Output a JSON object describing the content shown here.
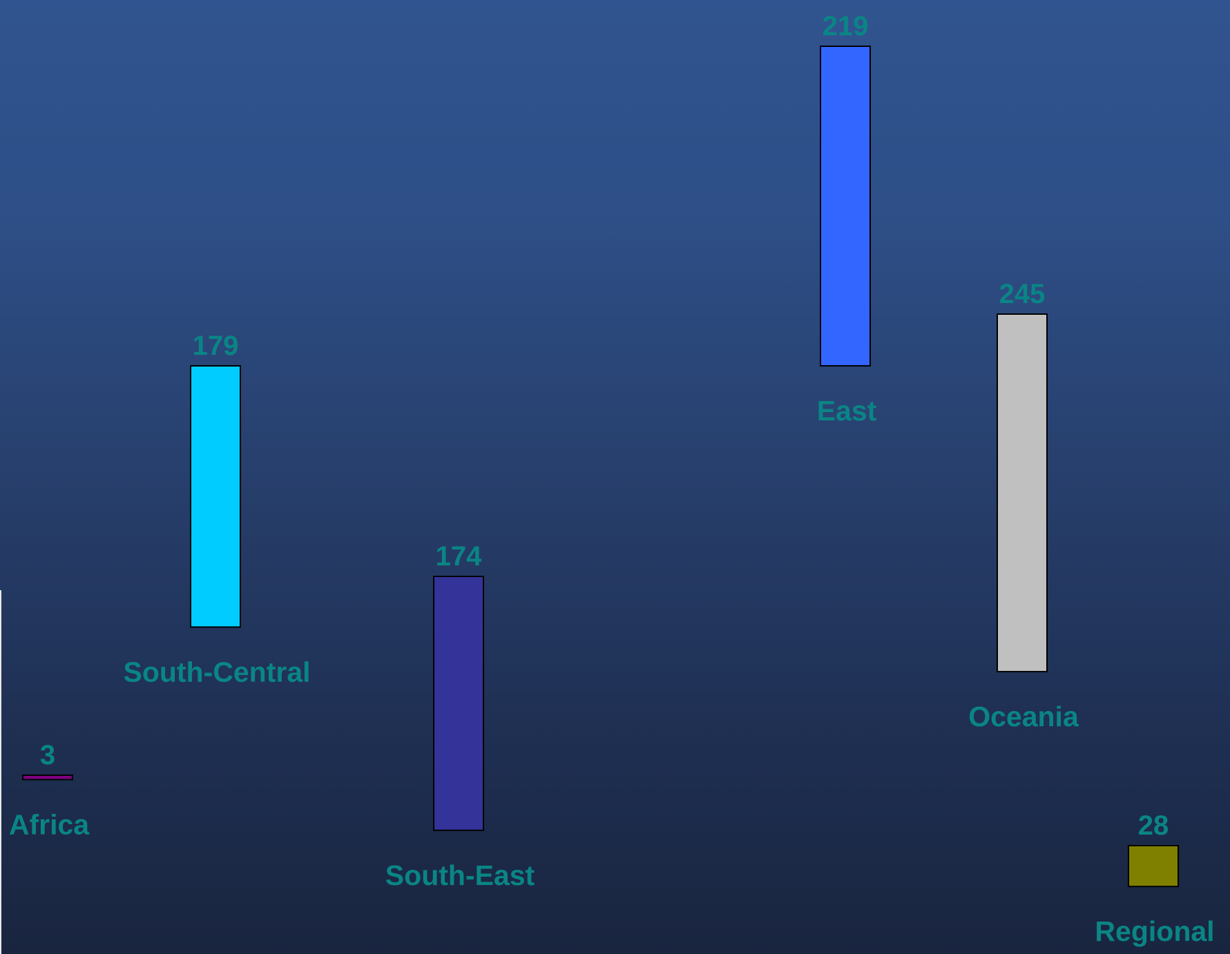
{
  "colors": {
    "label": "#0a8585",
    "bar_outline": "#000000"
  },
  "chart_data": {
    "type": "bar",
    "title": "",
    "xlabel": "",
    "ylabel": "",
    "categories": [
      "Africa",
      "South-Central",
      "South-East",
      "East",
      "Oceania",
      "Regional"
    ],
    "values": [
      3,
      179,
      174,
      219,
      245,
      28
    ],
    "value_labels": [
      "3",
      "179",
      "174",
      "219",
      "245",
      "28"
    ],
    "bar_colors": [
      "#800080",
      "#00ccff",
      "#333399",
      "#3366ff",
      "#c0c0c0",
      "#808000"
    ],
    "grid": false,
    "legend": "none",
    "layout_note_free": true
  }
}
